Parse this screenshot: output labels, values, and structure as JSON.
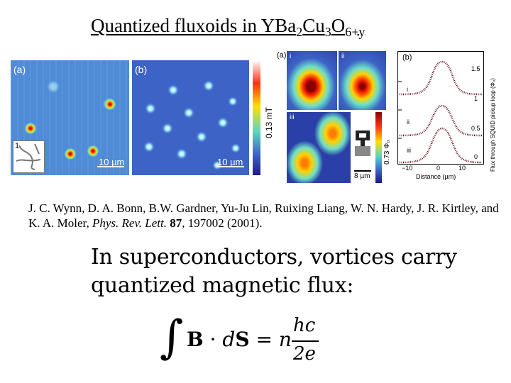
{
  "slide": {
    "title_parts": [
      "Quantized fluxoids in YBa",
      "2",
      "Cu",
      "3",
      "O",
      "6+y"
    ],
    "citation": {
      "authors": "J. C. Wynn, D. A. Bonn, B.W. Gardner, Yu-Ju Lin, Ruixing Liang, W. N. Hardy, J. R. Kirtley, and K. A. Moler, ",
      "journal": "Phys. Rev. Lett.",
      "volume": "87",
      "pages_year": ", 197002 (2001)."
    },
    "statement_lines": [
      "In superconductors, vortices carry",
      "quantized magnetic flux:"
    ],
    "equation": {
      "integral": "∫",
      "integrand_bold1": "B",
      "dot": " · ",
      "d": "d",
      "integrand_bold2": "S",
      "equals": " = ",
      "n": "n",
      "numerator": "hc",
      "denominator": "2e"
    }
  },
  "figure_left": {
    "panel_a_label": "(a)",
    "panel_b_label": "(b)",
    "scalebar_a": "10 µm",
    "scalebar_b": "10 µm",
    "colorbar_label": "0.13 mT",
    "inset_label": "1"
  },
  "figure_right": {
    "panel_a_label": "(a)",
    "sub_i": "i",
    "sub_ii": "ii",
    "sub_iii": "iii",
    "colorbar_label": "0.73 Φ₀",
    "scalebar": "8 µm",
    "plot": {
      "panel_label": "(b)",
      "curve_i": "i",
      "curve_ii": "ii",
      "curve_iii": "iii",
      "xlabel": "Distance (µm)",
      "ylabel": "Flux through SQUID pickup loop (Φ₀)",
      "xticks": [
        "−10",
        "0",
        "10"
      ],
      "yticks": [
        "1.5",
        "1",
        "0.5",
        "0"
      ]
    }
  }
}
